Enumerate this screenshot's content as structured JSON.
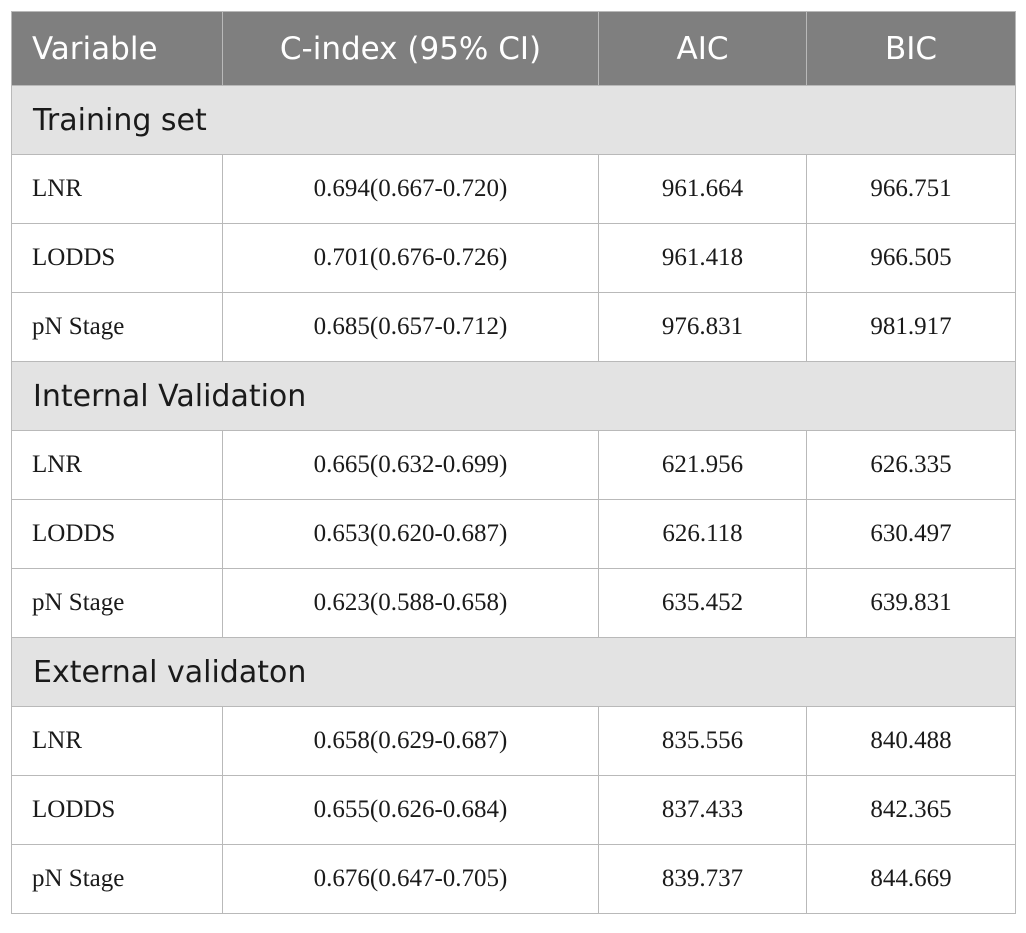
{
  "header": {
    "variable": "Variable",
    "cindex": "C-index (95% CI)",
    "aic": "AIC",
    "bic": "BIC"
  },
  "sections": [
    {
      "title": "Training set",
      "rows": [
        {
          "variable": "LNR",
          "cindex": "0.694(0.667-0.720)",
          "aic": "961.664",
          "bic": "966.751"
        },
        {
          "variable": "LODDS",
          "cindex": "0.701(0.676-0.726)",
          "aic": "961.418",
          "bic": "966.505"
        },
        {
          "variable": "pN Stage",
          "cindex": "0.685(0.657-0.712)",
          "aic": "976.831",
          "bic": "981.917"
        }
      ]
    },
    {
      "title": "Internal Validation",
      "rows": [
        {
          "variable": "LNR",
          "cindex": "0.665(0.632-0.699)",
          "aic": "621.956",
          "bic": "626.335"
        },
        {
          "variable": "LODDS",
          "cindex": "0.653(0.620-0.687)",
          "aic": "626.118",
          "bic": "630.497"
        },
        {
          "variable": "pN Stage",
          "cindex": "0.623(0.588-0.658)",
          "aic": "635.452",
          "bic": "639.831"
        }
      ]
    },
    {
      "title": "External validaton",
      "rows": [
        {
          "variable": "LNR",
          "cindex": "0.658(0.629-0.687)",
          "aic": "835.556",
          "bic": "840.488"
        },
        {
          "variable": "LODDS",
          "cindex": "0.655(0.626-0.684)",
          "aic": "837.433",
          "bic": "842.365"
        },
        {
          "variable": "pN Stage",
          "cindex": "0.676(0.647-0.705)",
          "aic": "839.737",
          "bic": "844.669"
        }
      ]
    }
  ]
}
